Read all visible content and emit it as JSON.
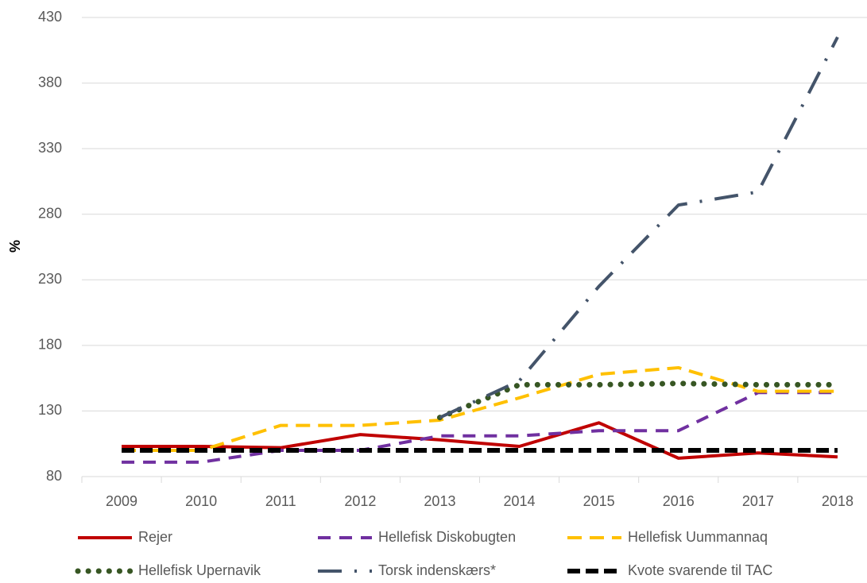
{
  "chart_data": {
    "type": "line",
    "y_label": "%",
    "categories": [
      "2009",
      "2010",
      "2011",
      "2012",
      "2013",
      "2014",
      "2015",
      "2016",
      "2017",
      "2018"
    ],
    "ylim": [
      80,
      430
    ],
    "yticks": [
      80,
      130,
      180,
      230,
      280,
      330,
      380,
      430
    ],
    "grid": true,
    "series": [
      {
        "name": "Rejer",
        "color": "#c00000",
        "values": [
          103,
          103,
          102,
          112,
          108,
          103,
          121,
          94,
          98,
          95
        ]
      },
      {
        "name": "Hellefisk Diskobugten",
        "color": "#7030a0",
        "values": [
          91,
          91,
          100,
          100,
          111,
          111,
          115,
          115,
          144,
          144
        ]
      },
      {
        "name": "Hellefisk Uummannaq",
        "color": "#ffc000",
        "values": [
          100,
          100,
          119,
          119,
          123,
          140,
          158,
          163,
          145,
          145
        ]
      },
      {
        "name": "Hellefisk Upernavik",
        "color": "#375623",
        "values": [
          null,
          null,
          null,
          null,
          125,
          150,
          150,
          151,
          150,
          150
        ]
      },
      {
        "name": "Torsk indenskærs*",
        "color": "#44546a",
        "values": [
          null,
          null,
          null,
          null,
          125,
          153,
          225,
          287,
          297,
          415
        ]
      },
      {
        "name": "Kvote svarende til TAC",
        "color": "#000000",
        "values": [
          100,
          100,
          100,
          100,
          100,
          100,
          100,
          100,
          100,
          100
        ]
      }
    ]
  }
}
